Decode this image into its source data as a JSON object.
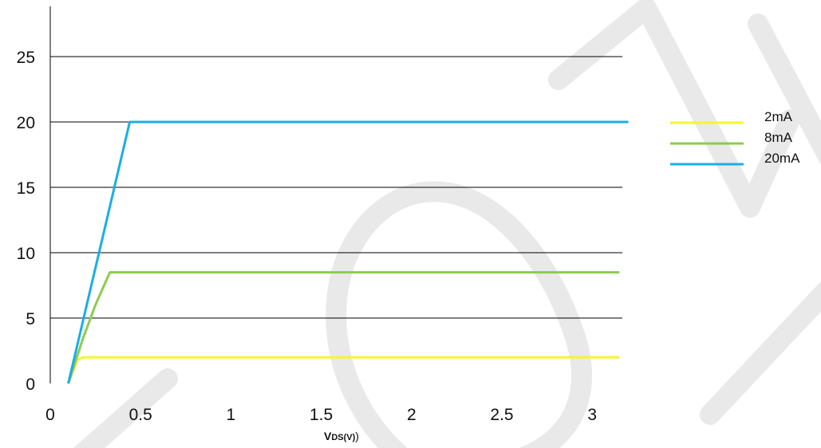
{
  "chart_data": {
    "type": "line",
    "title": "",
    "xlabel": {
      "main": "V",
      "sub": "DS(V)",
      "close": ")"
    },
    "ylabel": "",
    "xlim": [
      0,
      3.2
    ],
    "ylim": [
      0,
      29
    ],
    "xticks": [
      {
        "value": 0,
        "label": "0"
      },
      {
        "value": 0.5,
        "label": "0.5"
      },
      {
        "value": 1,
        "label": "1"
      },
      {
        "value": 1.5,
        "label": "1.5"
      },
      {
        "value": 2,
        "label": "2"
      },
      {
        "value": 2.5,
        "label": "2.5"
      },
      {
        "value": 3,
        "label": "3"
      }
    ],
    "yticks": [
      {
        "value": 0,
        "label": "0"
      },
      {
        "value": 5,
        "label": "5"
      },
      {
        "value": 10,
        "label": "10"
      },
      {
        "value": 15,
        "label": "15"
      },
      {
        "value": 20,
        "label": "20"
      },
      {
        "value": 25,
        "label": "25"
      }
    ],
    "grid": "horizontal",
    "legend_position": "right",
    "series": [
      {
        "name": "2mA",
        "color": "#f5f530",
        "x": [
          0.1,
          0.15,
          0.18,
          3.15
        ],
        "y": [
          0,
          1.8,
          2.0,
          2.0
        ]
      },
      {
        "name": "8mA",
        "color": "#8ccb50",
        "x": [
          0.1,
          0.18,
          0.25,
          0.33,
          3.15
        ],
        "y": [
          0,
          3.4,
          6.0,
          8.5,
          8.5
        ]
      },
      {
        "name": "20mA",
        "color": "#1aaee6",
        "x": [
          0.1,
          0.44,
          3.2
        ],
        "y": [
          0,
          20,
          20
        ]
      }
    ]
  }
}
